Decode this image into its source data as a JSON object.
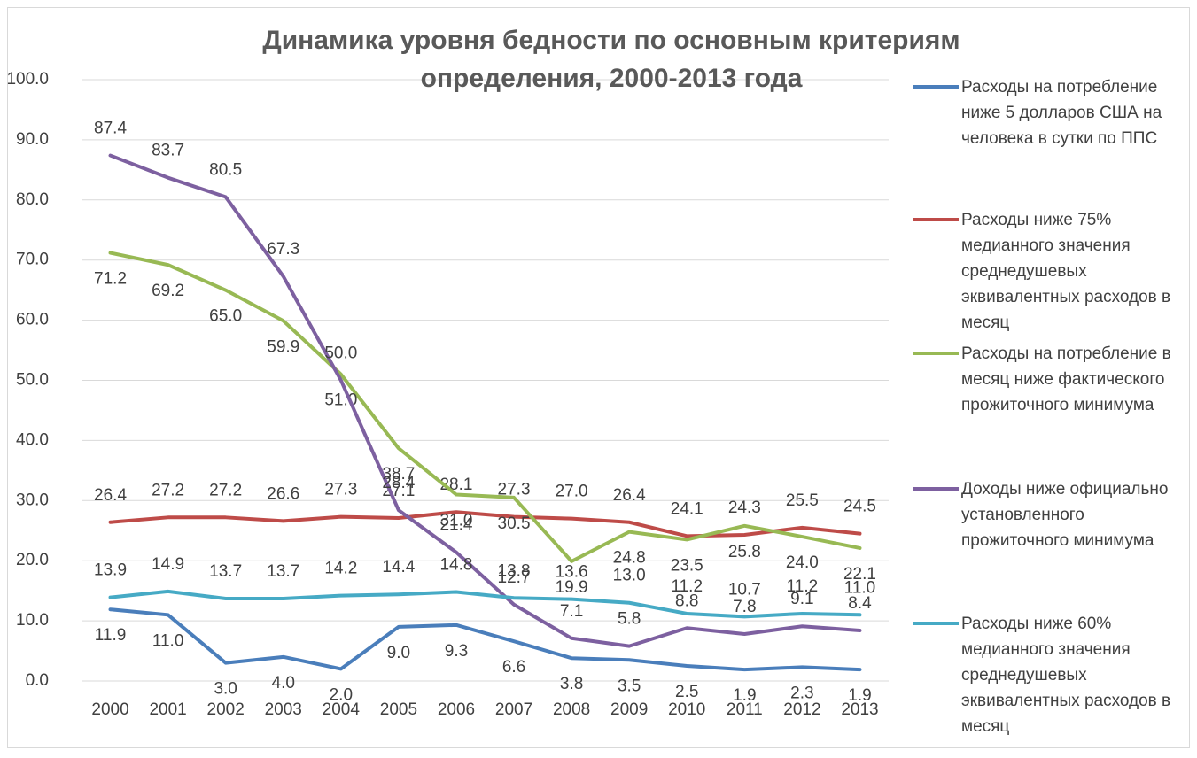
{
  "chart_data": {
    "type": "line",
    "title": "Динамика уровня бедности по основным критериям определения, 2000-2013 года",
    "categories": [
      "2000",
      "2001",
      "2002",
      "2003",
      "2004",
      "2005",
      "2006",
      "2007",
      "2008",
      "2009",
      "2010",
      "2011",
      "2012",
      "2013"
    ],
    "ylim": [
      0,
      100
    ],
    "yticks": [
      {
        "value": 0,
        "label": "0.0"
      },
      {
        "value": 10,
        "label": "10.0"
      },
      {
        "value": 20,
        "label": "20.0"
      },
      {
        "value": 30,
        "label": "30.0"
      },
      {
        "value": 40,
        "label": "40.0"
      },
      {
        "value": 50,
        "label": "50.0"
      },
      {
        "value": 60,
        "label": "60.0"
      },
      {
        "value": 70,
        "label": "70.0"
      },
      {
        "value": 80,
        "label": "80.0"
      },
      {
        "value": 90,
        "label": "90.0"
      },
      {
        "value": 100,
        "label": "100.0"
      }
    ],
    "grid": true,
    "legend": "right",
    "series": [
      {
        "name": "Расходы на потребление ниже 5 долларов США на человека в сутки по ППС",
        "color": "#4a7ebb",
        "values": [
          11.9,
          11.0,
          3.0,
          4.0,
          2.0,
          9.0,
          9.3,
          6.6,
          3.8,
          3.5,
          2.5,
          1.9,
          2.3,
          1.9
        ],
        "value_labels": [
          "11.9",
          "11.0",
          "3.0",
          "4.0",
          "2.0",
          "9.0",
          "9.3",
          "6.6",
          "3.8",
          "3.5",
          "2.5",
          "1.9",
          "2.3",
          "1.9"
        ]
      },
      {
        "name": "Расходы ниже 75% медианного значения среднедушевых эквивалентных расходов в месяц",
        "color": "#be4b48",
        "values": [
          26.4,
          27.2,
          27.2,
          26.6,
          27.3,
          27.1,
          28.1,
          27.3,
          27.0,
          26.4,
          24.1,
          24.3,
          25.5,
          24.5
        ],
        "value_labels": [
          "26.4",
          "27.2",
          "27.2",
          "26.6",
          "27.3",
          "27.1",
          "28.1",
          "27.3",
          "27.0",
          "26.4",
          "24.1",
          "24.3",
          "25.5",
          "24.5"
        ]
      },
      {
        "name": "Расходы на потребление в месяц ниже фактического прожиточного минимума",
        "color": "#98b954",
        "values": [
          71.2,
          69.2,
          65.0,
          59.9,
          51.0,
          38.7,
          31.0,
          30.5,
          19.9,
          24.8,
          23.5,
          25.8,
          24.0,
          22.1
        ],
        "value_labels": [
          "71.2",
          "69.2",
          "65.0",
          "59.9",
          "51.0",
          "38.7",
          "31.0",
          "30.5",
          "19.9",
          "24.8",
          "23.5",
          "25.8",
          "24.0",
          "22.1"
        ]
      },
      {
        "name": "Доходы ниже официально установленного прожиточного минимума",
        "color": "#7d60a0",
        "values": [
          87.4,
          83.7,
          80.5,
          67.3,
          50.0,
          28.4,
          21.4,
          12.7,
          7.1,
          5.8,
          8.8,
          7.8,
          9.1,
          8.4
        ],
        "value_labels": [
          "87.4",
          "83.7",
          "80.5",
          "67.3",
          "50.0",
          "28.4",
          "21.4",
          "12.7",
          "7.1",
          "5.8",
          "8.8",
          "7.8",
          "9.1",
          "8.4"
        ]
      },
      {
        "name": "Расходы ниже 60% медианного значения среднедушевых эквивалентных расходов в месяц",
        "color": "#46aac5",
        "values": [
          13.9,
          14.9,
          13.7,
          13.7,
          14.2,
          14.4,
          14.8,
          13.8,
          13.6,
          13.0,
          11.2,
          10.7,
          11.2,
          11.0
        ],
        "value_labels": [
          "13.9",
          "14.9",
          "13.7",
          "13.7",
          "14.2",
          "14.4",
          "14.8",
          "13.8",
          "13.6",
          "13.0",
          "11.2",
          "10.7",
          "11.2",
          "11.0"
        ]
      }
    ]
  }
}
